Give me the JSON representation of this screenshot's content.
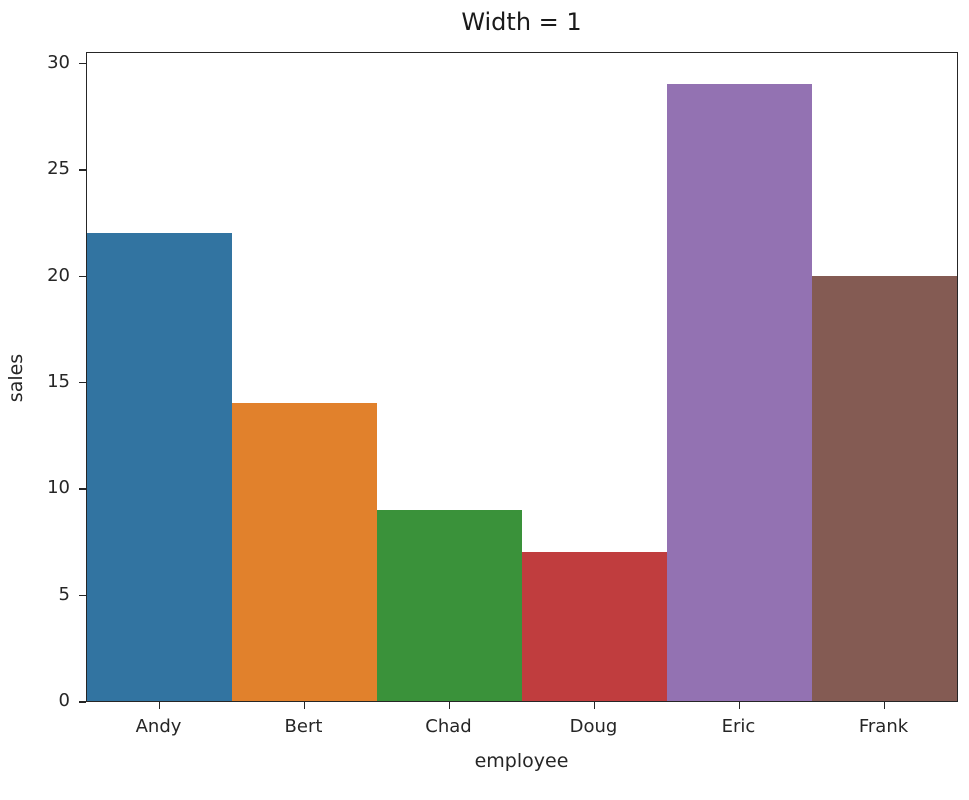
{
  "chart_data": {
    "type": "bar",
    "title": "Width = 1",
    "xlabel": "employee",
    "ylabel": "sales",
    "categories": [
      "Andy",
      "Bert",
      "Chad",
      "Doug",
      "Eric",
      "Frank"
    ],
    "values": [
      22,
      14,
      9,
      7,
      29,
      20
    ],
    "colors": [
      "#3274a1",
      "#e1812c",
      "#3a923a",
      "#c03d3e",
      "#9372b2",
      "#845b53"
    ],
    "ylim": [
      0,
      30.5
    ],
    "yticks": [
      0,
      5,
      10,
      15,
      20,
      25,
      30
    ],
    "bar_width": 1,
    "grid": false,
    "legend": null
  },
  "title": "Width = 1",
  "xlabel": "employee",
  "ylabel": "sales",
  "yticks": [
    "0",
    "5",
    "10",
    "15",
    "20",
    "25",
    "30"
  ],
  "xticks": [
    "Andy",
    "Bert",
    "Chad",
    "Doug",
    "Eric",
    "Frank"
  ]
}
